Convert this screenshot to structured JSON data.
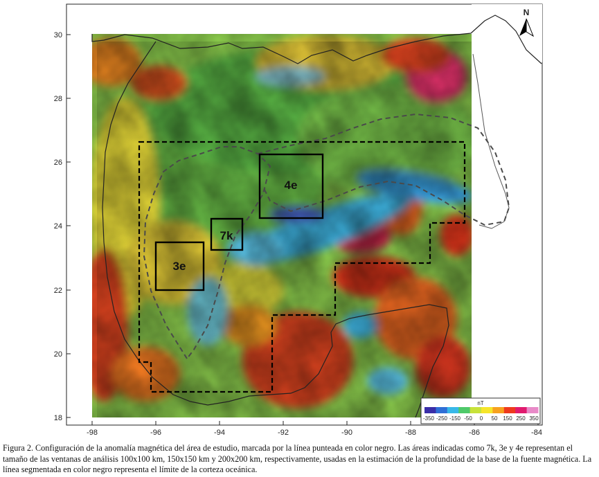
{
  "map": {
    "x_ticks": [
      "-98",
      "-96",
      "-94",
      "-92",
      "-90",
      "-88",
      "-86",
      "-84"
    ],
    "y_ticks": [
      "30",
      "28",
      "26",
      "24",
      "22",
      "20",
      "18"
    ],
    "north_label": "N",
    "windows": [
      {
        "id": "7k",
        "label": "7k"
      },
      {
        "id": "3e",
        "label": "3e"
      },
      {
        "id": "4e",
        "label": "4e"
      }
    ],
    "colorbar": {
      "unit": "nT",
      "ticks": [
        "-350",
        "-250",
        "-150",
        "-50",
        "0",
        "50",
        "150",
        "250",
        "350"
      ],
      "colors": [
        "#3a2ea8",
        "#2f6fd6",
        "#38b8e8",
        "#4fc96a",
        "#c8e23a",
        "#f6e52a",
        "#f7a11e",
        "#ee3a1e",
        "#e01a6e",
        "#e88ac8"
      ]
    }
  },
  "caption": "Figura 2. Configuración de la anomalía magnética del área de estudio, marcada por la línea punteada en color negro. Las áreas indicadas como 7k, 3e y 4e representan el tamaño de las ventanas de análisis 100x100 km, 150x150 km y 200x200 km, respectivamente, usadas en la estimación de la profundidad de la base de la fuente magnética. La línea segmentada en color negro representa el límite de la corteza oceánica."
}
